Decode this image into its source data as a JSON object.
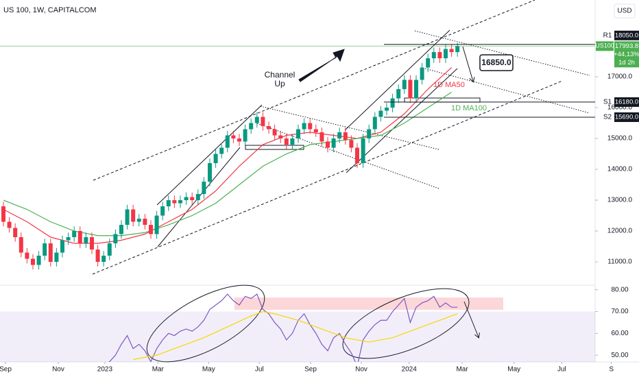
{
  "header": {
    "title": "US 100, 1W, CAPITALCOM",
    "currency": "USD"
  },
  "chart_data": [
    {
      "type": "candlestick",
      "up_color": "#089981",
      "down_color": "#f23645",
      "x": [
        0,
        1,
        2,
        3,
        4,
        5,
        6,
        7,
        8,
        9,
        10,
        11,
        12,
        13,
        14,
        15,
        16,
        17,
        18,
        19,
        20,
        21,
        22,
        23,
        24,
        25,
        26,
        27,
        28,
        29,
        30,
        31,
        32,
        33,
        34,
        35,
        36,
        37,
        38,
        39,
        40,
        41,
        42,
        43,
        44,
        45,
        46,
        47,
        48,
        49,
        50,
        51,
        52,
        53,
        54,
        55,
        56,
        57,
        58,
        59,
        60,
        61,
        62,
        63,
        64,
        65,
        66,
        67,
        68,
        69,
        70,
        71,
        72,
        73,
        74,
        75,
        76,
        77
      ],
      "candles": {
        "open": [
          12800,
          12300,
          12100,
          11800,
          11300,
          11100,
          10900,
          11200,
          11600,
          11000,
          11300,
          11700,
          11800,
          12000,
          11600,
          11800,
          11400,
          11000,
          11200,
          11600,
          11900,
          12200,
          12700,
          12300,
          12400,
          12200,
          11900,
          12500,
          12800,
          13000,
          12900,
          13000,
          13100,
          13000,
          13200,
          13600,
          14200,
          14500,
          14700,
          15100,
          15000,
          14900,
          15300,
          15500,
          15700,
          15400,
          15300,
          15100,
          15000,
          14800,
          15000,
          15300,
          15500,
          15300,
          15200,
          14900,
          14700,
          15000,
          15200,
          14950,
          14700,
          14200,
          15000,
          15300,
          15700,
          15900,
          16000,
          16300,
          16600,
          16900,
          16300,
          16900,
          17300,
          17600,
          17800,
          17600,
          17900,
          17800
        ],
        "high": [
          12950,
          12450,
          12250,
          11950,
          11450,
          11250,
          11350,
          11750,
          11750,
          11450,
          11850,
          11950,
          12150,
          12150,
          11950,
          11950,
          11550,
          11350,
          11750,
          12050,
          12350,
          12850,
          12850,
          12550,
          12550,
          12350,
          12650,
          12950,
          13150,
          13150,
          13150,
          13250,
          13250,
          13350,
          13750,
          14350,
          14650,
          14850,
          15250,
          15250,
          15150,
          15450,
          15650,
          15850,
          15850,
          15550,
          15450,
          15250,
          15150,
          15150,
          15450,
          15650,
          15650,
          15450,
          15350,
          15050,
          15150,
          15350,
          15350,
          15100,
          14850,
          15150,
          15450,
          15850,
          16050,
          16150,
          16450,
          16750,
          17050,
          17050,
          17050,
          17450,
          17750,
          17950,
          17950,
          18050,
          18050,
          18100
        ],
        "low": [
          12150,
          11950,
          11650,
          11150,
          10950,
          10750,
          10750,
          11050,
          10850,
          10850,
          11150,
          11550,
          11650,
          11450,
          11450,
          11250,
          10850,
          10850,
          11050,
          11450,
          11750,
          12050,
          12150,
          12150,
          12050,
          11750,
          11750,
          12350,
          12650,
          12750,
          12750,
          12850,
          12850,
          12850,
          13050,
          13450,
          14050,
          14350,
          14550,
          14850,
          14750,
          14750,
          15150,
          15350,
          15250,
          15150,
          14950,
          14850,
          14650,
          14650,
          14850,
          15150,
          15150,
          15050,
          14750,
          14550,
          14550,
          14850,
          14800,
          14550,
          14050,
          14050,
          14850,
          15150,
          15550,
          15750,
          15850,
          16150,
          16450,
          16150,
          16150,
          16750,
          17150,
          17450,
          17450,
          17450,
          17650,
          17650
        ],
        "close": [
          12300,
          12100,
          11800,
          11300,
          11100,
          10900,
          11200,
          11600,
          11000,
          11300,
          11700,
          11800,
          12000,
          11600,
          11800,
          11400,
          11000,
          11200,
          11600,
          11900,
          12200,
          12700,
          12300,
          12400,
          12200,
          11900,
          12500,
          12800,
          13000,
          12900,
          13000,
          13100,
          13000,
          13200,
          13600,
          14200,
          14500,
          14700,
          15100,
          15000,
          14900,
          15300,
          15500,
          15700,
          15400,
          15300,
          15100,
          15000,
          14800,
          15000,
          15300,
          15500,
          15300,
          15200,
          14900,
          14700,
          15000,
          15200,
          14950,
          14700,
          14200,
          15000,
          15300,
          15700,
          15900,
          16000,
          16300,
          16600,
          16900,
          16300,
          16900,
          17300,
          17600,
          17800,
          17600,
          17900,
          17800,
          17993.8
        ]
      },
      "series": [
        {
          "name": "1D MA50",
          "color": "#f23645",
          "x": [
            0,
            4,
            8,
            12,
            16,
            20,
            24,
            28,
            32,
            36,
            40,
            44,
            48,
            52,
            56,
            60,
            64,
            68,
            72,
            76
          ],
          "values": [
            12700,
            12300,
            11800,
            11600,
            11600,
            11700,
            11900,
            12300,
            12700,
            13300,
            14100,
            14800,
            15100,
            15200,
            15100,
            15000,
            15200,
            15800,
            16600,
            17300
          ]
        },
        {
          "name": "1D MA100",
          "color": "#4caf50",
          "x": [
            0,
            4,
            8,
            12,
            16,
            20,
            24,
            28,
            32,
            36,
            40,
            44,
            48,
            52,
            56,
            60,
            64,
            68,
            72,
            76
          ],
          "values": [
            13000,
            12700,
            12300,
            12000,
            11850,
            11850,
            11950,
            12200,
            12500,
            12900,
            13500,
            14100,
            14500,
            14800,
            14900,
            15000,
            15100,
            15500,
            16000,
            16500
          ]
        }
      ],
      "levels": [
        {
          "name": "R1",
          "value": 18050,
          "label": "18050.0"
        },
        {
          "name": "S1",
          "value": 16180,
          "label": "16180.0"
        },
        {
          "name": "S2",
          "value": 15690,
          "label": "15690.0"
        }
      ],
      "last": {
        "name": "US100",
        "change": "+44,13%",
        "countdown": "1d 2h"
      },
      "annotations": {
        "channel": [
          "Channel",
          "Up"
        ],
        "target": {
          "value": 16850,
          "label": "16850.0"
        }
      },
      "xlim": [
        -0.58,
        100.35
      ],
      "xticks": [
        {
          "value": 0.35,
          "label": "Sep"
        },
        {
          "value": 9.3,
          "label": "Nov"
        },
        {
          "value": 17.2,
          "label": "2023"
        },
        {
          "value": 26.2,
          "label": "Mar"
        },
        {
          "value": 34.8,
          "label": "May"
        },
        {
          "value": 43.4,
          "label": "Jul"
        },
        {
          "value": 52.1,
          "label": "Sep"
        },
        {
          "value": 60.7,
          "label": "Nov"
        },
        {
          "value": 68.8,
          "label": "2024"
        },
        {
          "value": 77.8,
          "label": "Mar"
        },
        {
          "value": 86.6,
          "label": "May"
        },
        {
          "value": 94.7,
          "label": "Jul"
        },
        {
          "value": 103.1,
          "label": "S"
        }
      ],
      "ylim": [
        10267,
        19489
      ],
      "yticks": [
        {
          "value": 11000,
          "label": "11000.0"
        },
        {
          "value": 12000,
          "label": "12000.0"
        },
        {
          "value": 13000,
          "label": "13000.0"
        },
        {
          "value": 14000,
          "label": "14000.0"
        },
        {
          "value": 15000,
          "label": "15000.0"
        },
        {
          "value": 16000,
          "label": "16000.0"
        },
        {
          "value": 17000,
          "label": "17000.0"
        }
      ]
    },
    {
      "type": "line",
      "series": [
        {
          "color": "#7e57c2",
          "x": [
            17,
            18,
            19,
            20,
            21,
            22,
            23,
            24,
            25,
            26,
            27,
            28,
            29,
            30,
            31,
            32,
            33,
            34,
            35,
            36,
            37,
            38,
            39,
            40,
            41,
            42,
            43,
            44,
            45,
            46,
            47,
            48,
            49,
            50,
            51,
            52,
            53,
            54,
            55,
            56,
            57,
            58,
            59,
            60,
            61,
            62,
            63,
            64,
            65,
            66,
            67,
            68,
            69,
            70,
            71,
            72,
            73,
            74,
            75,
            76,
            77
          ],
          "values": [
            45,
            47,
            50,
            55,
            59,
            53,
            55,
            52,
            47,
            53,
            57,
            60,
            59,
            61,
            62,
            61,
            63,
            66,
            71,
            73,
            75,
            78,
            75,
            73,
            77,
            76,
            78,
            71,
            69,
            65,
            62,
            57,
            60,
            66,
            69,
            64,
            60,
            55,
            52,
            58,
            60,
            55,
            51,
            45,
            57,
            61,
            64,
            66,
            66,
            70,
            73,
            76,
            65,
            72,
            74,
            75,
            77,
            72,
            74,
            72,
            72
          ]
        },
        {
          "color": "#f5d800",
          "x": [
            22,
            26,
            30,
            34,
            38,
            42,
            44,
            46,
            50,
            54,
            58,
            62,
            66,
            70,
            74,
            77
          ],
          "values": [
            48,
            50,
            54,
            58,
            63,
            68,
            70,
            69,
            66,
            62,
            58,
            56,
            58,
            62,
            66,
            69
          ]
        }
      ],
      "ylim": [
        46.9,
        81.5
      ],
      "yticks": [
        {
          "value": 80,
          "label": "80.00"
        },
        {
          "value": 70,
          "label": "70.00"
        },
        {
          "value": 60,
          "label": "60.00"
        },
        {
          "value": 50,
          "label": "50.00"
        }
      ]
    }
  ]
}
